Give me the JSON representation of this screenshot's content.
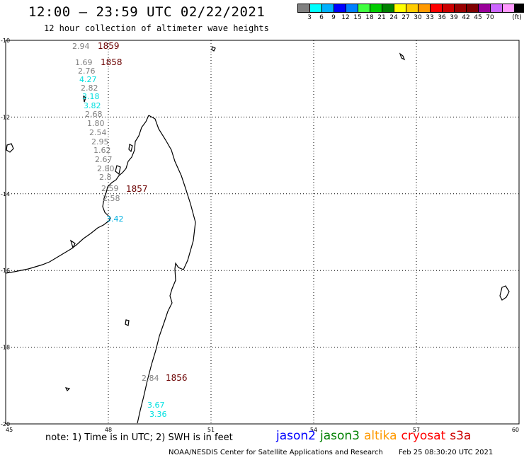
{
  "header": {
    "title": "12:00 – 23:59 UTC 02/22/2021",
    "subtitle": "12 hour collection of altimeter wave heights"
  },
  "legend": {
    "colors": [
      "#808080",
      "#00ffff",
      "#00b0ff",
      "#0000ff",
      "#0080ff",
      "#40ff40",
      "#00cc00",
      "#008000",
      "#ffff00",
      "#ffcc00",
      "#ff9900",
      "#ff0000",
      "#cc0000",
      "#990000",
      "#800000",
      "#990099",
      "#cc66ff",
      "#ff99ff",
      "#000000"
    ],
    "labels": [
      "3",
      "6",
      "9",
      "12",
      "15",
      "18",
      "21",
      "24",
      "27",
      "30",
      "33",
      "36",
      "39",
      "42",
      "45",
      "70",
      "(ft)"
    ]
  },
  "axes": {
    "x_ticks": [
      "45",
      "48",
      "51",
      "54",
      "57",
      "60"
    ],
    "y_ticks": [
      "-10",
      "-12",
      "-14",
      "-16",
      "-18",
      "-20"
    ]
  },
  "wave_heights": [
    {
      "value": "2.94",
      "color": "#808080"
    },
    {
      "value": "1.69",
      "color": "#808080"
    },
    {
      "value": "2.76",
      "color": "#808080"
    },
    {
      "value": "4.27",
      "color": "#00e0e0"
    },
    {
      "value": "2.82",
      "color": "#808080"
    },
    {
      "value": "3.18",
      "color": "#00e0e0"
    },
    {
      "value": "3.82",
      "color": "#00e0e0"
    },
    {
      "value": "2.68",
      "color": "#808080"
    },
    {
      "value": "1.80",
      "color": "#808080"
    },
    {
      "value": "2.54",
      "color": "#808080"
    },
    {
      "value": "2.95",
      "color": "#808080"
    },
    {
      "value": "1.62",
      "color": "#808080"
    },
    {
      "value": "2.67",
      "color": "#808080"
    },
    {
      "value": "2.80",
      "color": "#808080"
    },
    {
      "value": "2.8",
      "color": "#808080"
    },
    {
      "value": "2.59",
      "color": "#808080"
    },
    {
      "value": "2.58",
      "color": "#808080"
    },
    {
      "value": "3.42",
      "color": "#00b0e0"
    },
    {
      "value": "2.84",
      "color": "#808080"
    },
    {
      "value": "3.67",
      "color": "#00e0e0"
    },
    {
      "value": "3.36",
      "color": "#00e0e0"
    }
  ],
  "time_labels": [
    "1859",
    "1858",
    "1857",
    "1856"
  ],
  "note": "note: 1) Time is in UTC; 2) SWH is in feet",
  "satellites": [
    {
      "name": "jason2",
      "color": "#0000ff"
    },
    {
      "name": "jason3",
      "color": "#008000"
    },
    {
      "name": "altika",
      "color": "#ff9900"
    },
    {
      "name": "cryosat",
      "color": "#ff0000"
    },
    {
      "name": "s3a",
      "color": "#cc0000"
    }
  ],
  "footer": {
    "agency": "NOAA/NESDIS Center for Satellite Applications and Research",
    "timestamp": "Feb 25 08:30:20 UTC 2021"
  }
}
